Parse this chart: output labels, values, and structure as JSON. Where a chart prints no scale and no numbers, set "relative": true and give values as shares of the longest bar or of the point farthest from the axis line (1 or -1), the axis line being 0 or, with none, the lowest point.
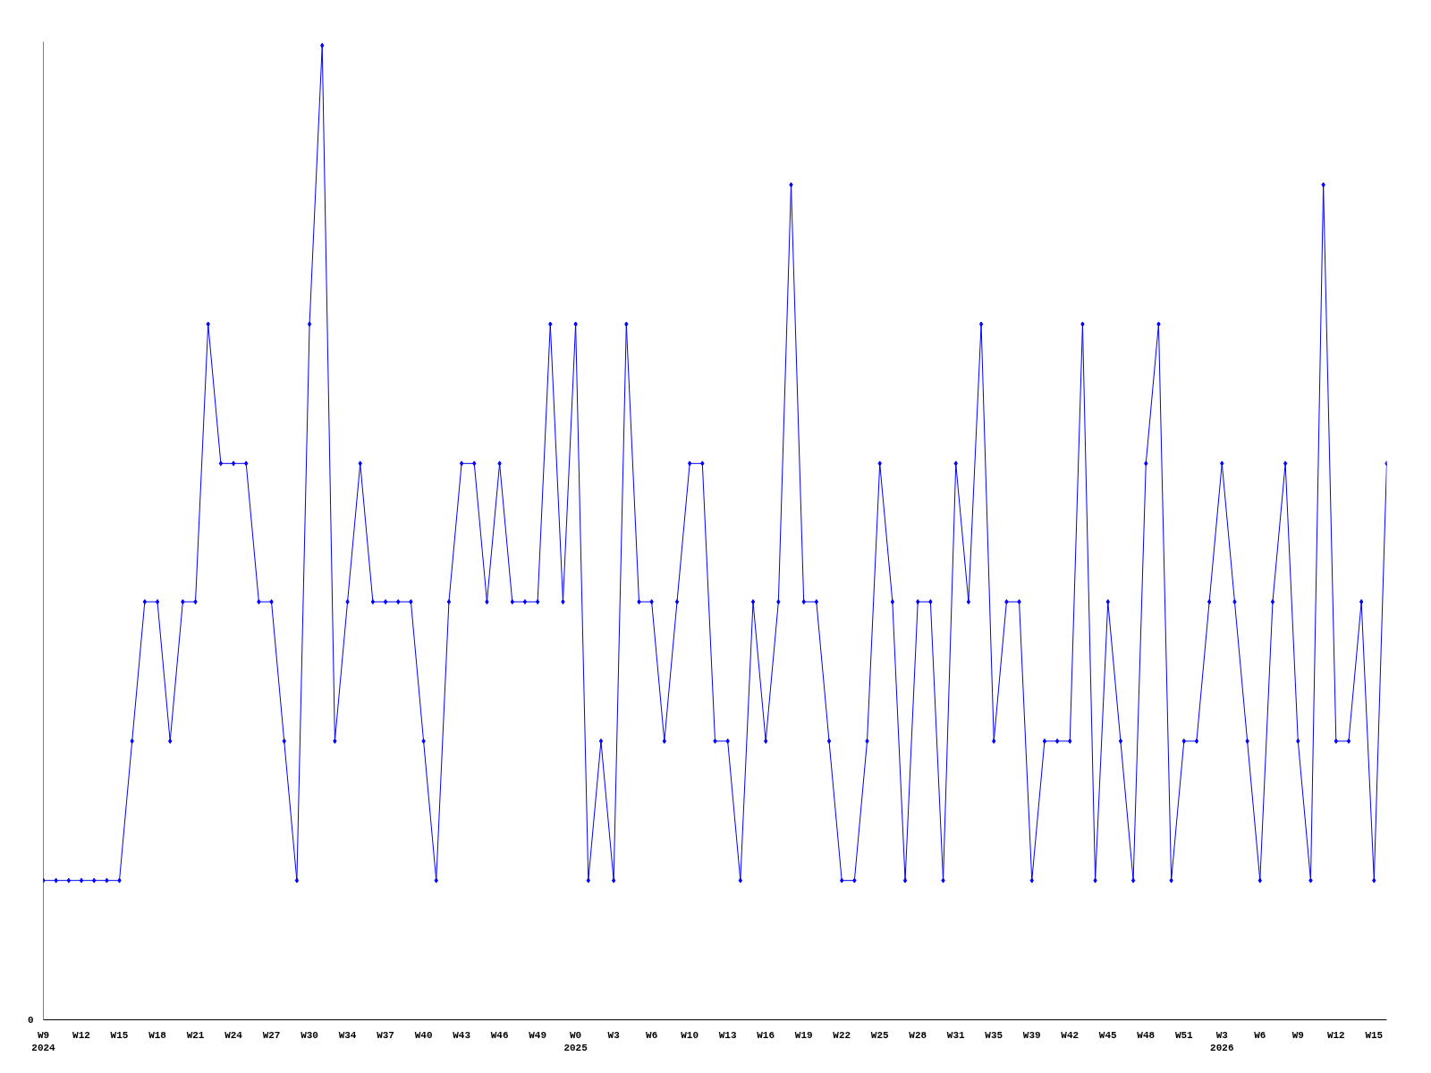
{
  "chart_data": {
    "type": "line",
    "relative": true,
    "marker": "diamond",
    "categories": [
      "W9\n2024",
      null,
      null,
      "W12",
      null,
      null,
      "W15",
      null,
      null,
      "W18",
      null,
      null,
      "W21",
      null,
      null,
      "W24",
      null,
      null,
      "W27",
      null,
      null,
      "W30",
      null,
      null,
      "W34",
      null,
      null,
      "W37",
      null,
      null,
      "W40",
      null,
      null,
      "W43",
      null,
      null,
      "W46",
      null,
      null,
      "W49",
      null,
      null,
      "W0\n2025",
      null,
      null,
      "W3",
      null,
      null,
      "W6",
      null,
      null,
      "W10",
      null,
      null,
      "W13",
      null,
      null,
      "W16",
      null,
      null,
      "W19",
      null,
      null,
      "W22",
      null,
      null,
      "W25",
      null,
      null,
      "W28",
      null,
      null,
      "W31",
      null,
      null,
      "W35",
      null,
      null,
      "W39",
      null,
      null,
      "W42",
      null,
      null,
      "W45",
      null,
      null,
      "W48",
      null,
      null,
      "W51",
      null,
      null,
      "W3\n2026",
      null,
      null,
      "W6",
      null,
      null,
      "W9",
      null,
      null,
      "W12",
      null,
      null,
      "W15",
      null
    ],
    "series": [
      {
        "color": "#0000ff",
        "values": [
          0.143,
          0.143,
          0.143,
          0.143,
          0.143,
          0.143,
          0.143,
          0.286,
          0.429,
          0.429,
          0.286,
          0.429,
          0.429,
          0.714,
          0.571,
          0.571,
          0.571,
          0.429,
          0.429,
          0.286,
          0.143,
          0.714,
          1,
          0.286,
          0.429,
          0.571,
          0.429,
          0.429,
          0.429,
          0.429,
          0.286,
          0.143,
          0.429,
          0.571,
          0.571,
          0.429,
          0.571,
          0.429,
          0.429,
          0.429,
          0.714,
          0.429,
          0.714,
          0.143,
          0.286,
          0.143,
          0.714,
          0.429,
          0.429,
          0.286,
          0.429,
          0.571,
          0.571,
          0.286,
          0.286,
          0.143,
          0.429,
          0.286,
          0.429,
          0.857,
          0.429,
          0.429,
          0.286,
          0.143,
          0.143,
          0.286,
          0.571,
          0.429,
          0.143,
          0.429,
          0.429,
          0.143,
          0.571,
          0.429,
          0.714,
          0.286,
          0.429,
          0.429,
          0.143,
          0.286,
          0.286,
          0.286,
          0.714,
          0.143,
          0.429,
          0.286,
          0.143,
          0.571,
          0.714,
          0.143,
          0.286,
          0.286,
          0.429,
          0.571,
          0.429,
          0.286,
          0.143,
          0.429,
          0.571,
          0.286,
          0.143,
          0.857,
          0.286,
          0.286,
          0.429,
          0.143,
          0.571
        ]
      }
    ],
    "annotations": [
      "0"
    ]
  }
}
